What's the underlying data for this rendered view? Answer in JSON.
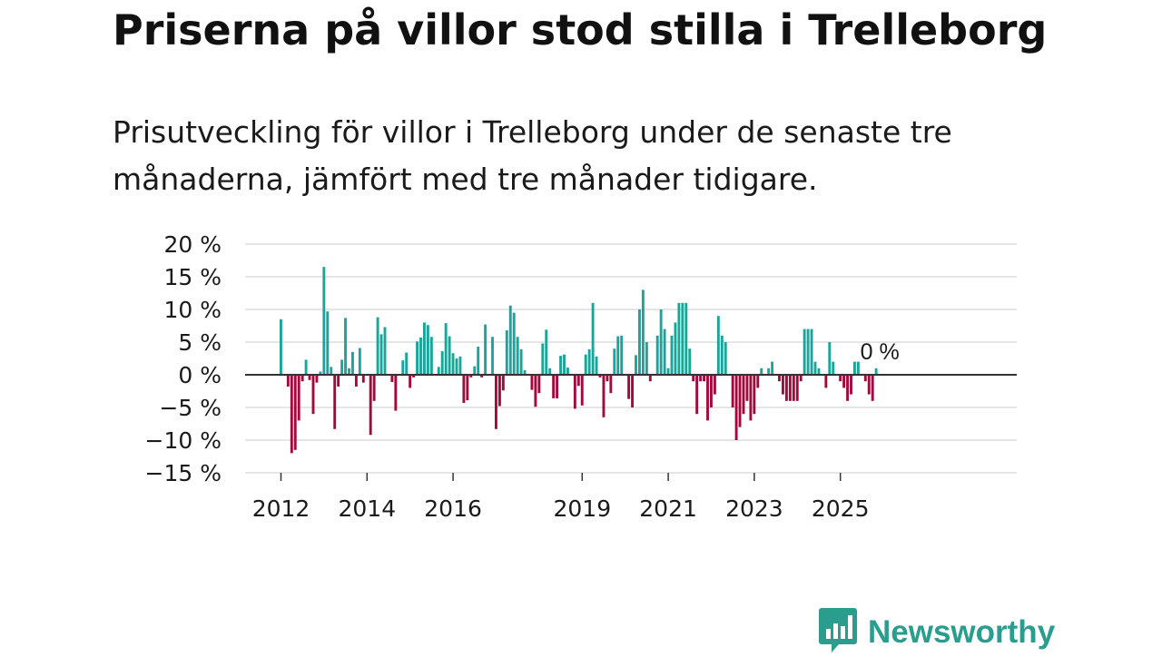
{
  "title": "Priserna på villor stod stilla i Trelleborg",
  "subtitle": "Prisutveckling för villor i Trelleborg under de senaste tre månaderna, jämfört med tre månader tidigare.",
  "brand": {
    "name": "Newsworthy",
    "icon": "bar-chart-speech-bubble-icon"
  },
  "colors": {
    "positive": "#1aa59b",
    "negative": "#a10a3c",
    "grid": "#dddddd",
    "zero_line": "#333333",
    "brand": "#2a9d8f"
  },
  "chart_data": {
    "type": "bar",
    "title": "Priserna på villor stod stilla i Trelleborg",
    "xlabel": "",
    "ylabel": "",
    "ylim": [
      -15,
      20
    ],
    "yticks": [
      20,
      15,
      10,
      5,
      0,
      -5,
      -10,
      -15
    ],
    "ytick_labels": [
      "20 %",
      "15 %",
      "10 %",
      "5 %",
      "0 %",
      "−5 %",
      "−10 %",
      "−15 %"
    ],
    "grid": true,
    "x_start": "2012-01",
    "x_end": "2025-12",
    "xtick_labels": [
      "2012",
      "2014",
      "2016",
      "2019",
      "2021",
      "2023",
      "2025"
    ],
    "last_value_label": "0 %",
    "series": [
      {
        "name": "Prisutveckling",
        "values": [
          8.5,
          0,
          -1.8,
          -12,
          -11.5,
          -7,
          -1,
          2.3,
          -0.8,
          -6,
          -1.2,
          0.5,
          16.5,
          9.7,
          1.2,
          -8.3,
          -1.8,
          2.3,
          8.7,
          1,
          3.5,
          -1.8,
          4.1,
          -1.2,
          0,
          -9.2,
          -4,
          8.8,
          6.2,
          7.3,
          0,
          -1.1,
          -5.5,
          0,
          2.2,
          3.4,
          -2,
          -0.4,
          5.1,
          5.7,
          8,
          7.6,
          5.8,
          0,
          1.2,
          3.6,
          7.9,
          5.9,
          3.3,
          2.5,
          2.8,
          -4.3,
          -3.9,
          -0.4,
          1.3,
          4.3,
          -0.4,
          7.7,
          0,
          5.8,
          -8.3,
          -4.8,
          -2.4,
          6.8,
          10.6,
          9.5,
          5.8,
          3.9,
          0.7,
          0,
          -2.3,
          -4.9,
          -2.8,
          4.8,
          6.9,
          1,
          -3.6,
          -3.6,
          2.9,
          3.1,
          1.1,
          0,
          -5.2,
          -1.7,
          -4.7,
          3.1,
          3.9,
          11,
          2.8,
          -0.4,
          -6.5,
          -1,
          -2.8,
          4,
          5.9,
          6,
          0,
          -3.7,
          -5,
          3,
          10,
          13,
          5,
          -1,
          0,
          6,
          10,
          7,
          1,
          6,
          8,
          11,
          11,
          11,
          4,
          -1,
          -6,
          -1,
          -1,
          -7,
          -5,
          -3,
          9,
          6,
          5,
          0,
          -5,
          -10,
          -8,
          -6,
          -4,
          -7,
          -6,
          -2,
          1,
          0,
          1,
          2,
          0,
          -1,
          -3,
          -4,
          -4,
          -4,
          -4,
          -1,
          7,
          7,
          7,
          2,
          1,
          0,
          -2,
          5,
          2,
          0,
          -1,
          -2,
          -4,
          -3,
          2,
          2,
          0,
          -1,
          -3,
          -4,
          1,
          0
        ]
      }
    ]
  }
}
